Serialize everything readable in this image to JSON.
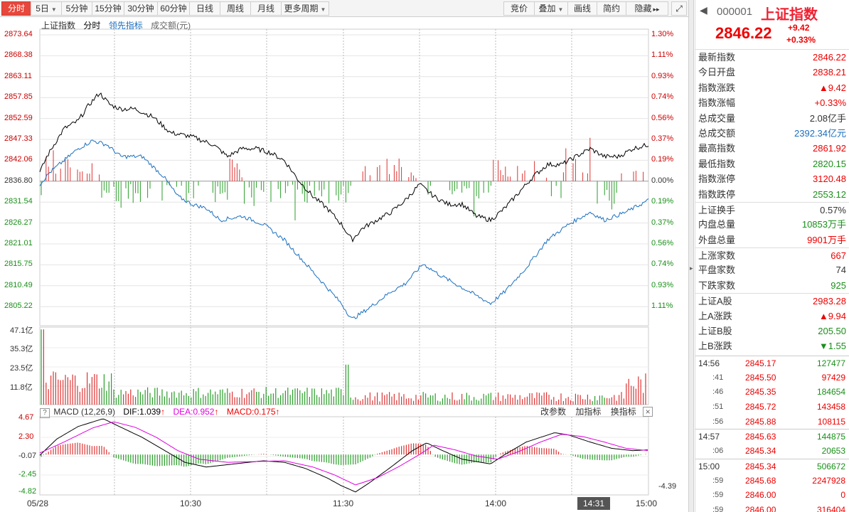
{
  "toolbar": {
    "left_buttons": [
      {
        "label": "分时",
        "active": true,
        "dropdown": false
      },
      {
        "label": "5日",
        "active": false,
        "dropdown": true
      },
      {
        "label": "5分钟",
        "active": false,
        "dropdown": false
      },
      {
        "label": "15分钟",
        "active": false,
        "dropdown": false
      },
      {
        "label": "30分钟",
        "active": false,
        "dropdown": false
      },
      {
        "label": "60分钟",
        "active": false,
        "dropdown": false
      },
      {
        "label": "日线",
        "active": false,
        "dropdown": false
      },
      {
        "label": "周线",
        "active": false,
        "dropdown": false
      },
      {
        "label": "月线",
        "active": false,
        "dropdown": false
      },
      {
        "label": "更多周期",
        "active": false,
        "dropdown": true
      }
    ],
    "right_buttons": [
      {
        "label": "竞价",
        "dropdown": false
      },
      {
        "label": "叠加",
        "dropdown": true
      },
      {
        "label": "画线",
        "dropdown": false
      },
      {
        "label": "简约",
        "dropdown": false
      },
      {
        "label": "隐藏",
        "dropdown": false
      }
    ],
    "hide_arrow": "▸▸",
    "expand_icon": "expand-icon"
  },
  "legend": {
    "index_name": "上证指数",
    "mode": "分时",
    "leading": "领先指标",
    "turnover": "成交额(元)"
  },
  "price_axis": {
    "labels": [
      "2873.64",
      "2868.38",
      "2863.11",
      "2857.85",
      "2852.59",
      "2847.33",
      "2842.06",
      "2836.80",
      "2831.54",
      "2826.27",
      "2821.01",
      "2815.75",
      "2810.49",
      "2805.22"
    ],
    "pct_labels": [
      "1.30%",
      "1.11%",
      "0.93%",
      "0.74%",
      "0.56%",
      "0.37%",
      "0.19%",
      "0.00%",
      "0.19%",
      "0.37%",
      "0.56%",
      "0.74%",
      "0.93%",
      "1.11%"
    ],
    "max": 2873.64,
    "min": 2800.0,
    "prev_close": 2836.8
  },
  "volume_axis": {
    "labels": [
      "47.1亿",
      "35.3亿",
      "23.5亿",
      "11.8亿"
    ],
    "max": 47.1
  },
  "macd": {
    "title": "MACD (12,26,9)",
    "dif_label": "DIF:1.039",
    "dea_label": "DEA:0.952",
    "macd_label": "MACD:0.175",
    "up_arrow": "↑",
    "axis_labels": [
      "4.67",
      "2.30",
      "-0.07",
      "-2.45",
      "-4.82"
    ],
    "right_value": "-4.39",
    "buttons": [
      "改参数",
      "加指标",
      "换指标"
    ],
    "close_icon": "×",
    "help_icon": "?",
    "max": 4.67,
    "min": -4.82
  },
  "time_axis": {
    "labels": [
      "05/28",
      "10:30",
      "11:30",
      "14:00",
      "15:00"
    ],
    "cursor": "14:31"
  },
  "panel": {
    "back_arrow": "◀",
    "code": "000001",
    "name": "上证指数",
    "last": "2846.22",
    "change": "+9.42",
    "change_pct": "+0.33%",
    "quote_rows": [
      {
        "label": "最新指数",
        "value": "2846.22",
        "color": "red"
      },
      {
        "label": "今日开盘",
        "value": "2838.21",
        "color": "red"
      },
      {
        "label": "指数涨跌",
        "value": "▲9.42",
        "color": "red"
      },
      {
        "label": "指数涨幅",
        "value": "+0.33%",
        "color": "red"
      },
      {
        "label": "总成交量",
        "value": "2.08亿手",
        "color": "dark"
      },
      {
        "label": "总成交额",
        "value": "2392.34亿元",
        "color": "blue"
      },
      {
        "label": "最高指数",
        "value": "2861.92",
        "color": "red"
      },
      {
        "label": "最低指数",
        "value": "2820.15",
        "color": "green"
      },
      {
        "label": "指数涨停",
        "value": "3120.48",
        "color": "red"
      },
      {
        "label": "指数跌停",
        "value": "2553.12",
        "color": "green"
      }
    ],
    "turnover_rows": [
      {
        "label": "上证换手",
        "value": "0.57%",
        "color": "dark"
      },
      {
        "label": "内盘总量",
        "value": "10853万手",
        "color": "green"
      },
      {
        "label": "外盘总量",
        "value": "9901万手",
        "color": "red"
      }
    ],
    "breadth_rows": [
      {
        "label": "上涨家数",
        "value": "667",
        "color": "red"
      },
      {
        "label": "平盘家数",
        "value": "74",
        "color": "dark"
      },
      {
        "label": "下跌家数",
        "value": "925",
        "color": "green"
      }
    ],
    "share_rows": [
      {
        "label": "上证A股",
        "value": "2983.28",
        "color": "red"
      },
      {
        "label": "上A涨跌",
        "value": "▲9.94",
        "color": "red"
      },
      {
        "label": "上证B股",
        "value": "205.50",
        "color": "green"
      },
      {
        "label": "上B涨跌",
        "value": "▼1.55",
        "color": "green"
      }
    ],
    "ticks": [
      {
        "time": "14:56",
        "sub": false,
        "price": "2845.17",
        "vol": "127477",
        "color": "green"
      },
      {
        "time": ":41",
        "sub": true,
        "price": "2845.50",
        "vol": "97429",
        "color": "red"
      },
      {
        "time": ":46",
        "sub": true,
        "price": "2845.35",
        "vol": "184654",
        "color": "green"
      },
      {
        "time": ":51",
        "sub": true,
        "price": "2845.72",
        "vol": "143458",
        "color": "red"
      },
      {
        "time": ":56",
        "sub": true,
        "price": "2845.88",
        "vol": "108115",
        "color": "red"
      },
      {
        "time": "14:57",
        "sub": false,
        "price": "2845.63",
        "vol": "144875",
        "color": "green"
      },
      {
        "time": ":06",
        "sub": true,
        "price": "2845.34",
        "vol": "20653",
        "color": "green"
      },
      {
        "time": "15:00",
        "sub": false,
        "price": "2845.34",
        "vol": "506672",
        "color": "green"
      },
      {
        "time": ":59",
        "sub": true,
        "price": "2845.68",
        "vol": "2247928",
        "color": "red"
      },
      {
        "time": ":59",
        "sub": true,
        "price": "2846.00",
        "vol": "0",
        "color": "red"
      },
      {
        "time": ":59",
        "sub": true,
        "price": "2846.00",
        "vol": "316404",
        "color": "red"
      }
    ]
  },
  "colors": {
    "up": "#e00000",
    "down": "#1a8f1a",
    "price_line": "#000000",
    "leading_line": "#1a6fbf",
    "dea_line": "#e000e0",
    "active_tab": "#e8473c"
  }
}
